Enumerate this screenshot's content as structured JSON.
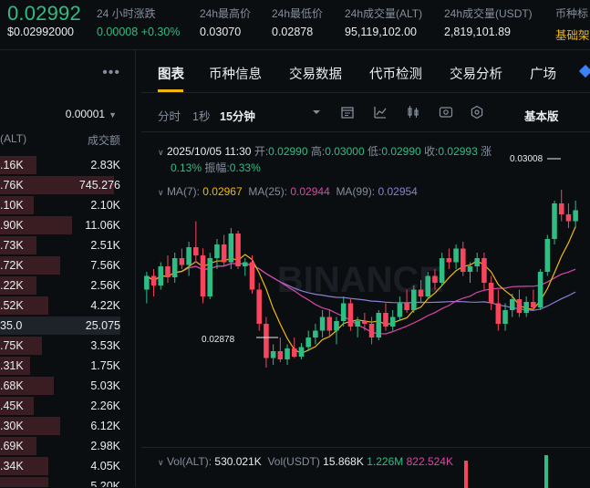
{
  "header": {
    "price": "0.02992",
    "price_fiat": "$0.02992000",
    "stats": [
      {
        "label": "24 小时涨跌",
        "value": "0.00008 +0.30%",
        "tone": "green"
      },
      {
        "label": "24h最高价",
        "value": "0.03070",
        "tone": "white"
      },
      {
        "label": "24h最低价",
        "value": "0.02878",
        "tone": "white"
      },
      {
        "label": "24h成交量(ALT)",
        "value": "95,119,102.00",
        "tone": "white"
      },
      {
        "label": "24h成交量(USDT)",
        "value": "2,819,101.89",
        "tone": "white"
      },
      {
        "label": "币种标",
        "value": "基础架",
        "tone": "yellow"
      }
    ]
  },
  "orderbook": {
    "more_icon": "ellipsis-icon",
    "precision": "0.00001",
    "col_left": "(ALT)",
    "col_right": "成交额",
    "rows": [
      {
        "left": ".16K",
        "right": "2.83K",
        "depth": 0.3
      },
      {
        "left": ".76K",
        "right": "745.276",
        "depth": 0.95
      },
      {
        "left": ".10K",
        "right": "2.10K",
        "depth": 0.28
      },
      {
        "left": ".90K",
        "right": "11.06K",
        "depth": 0.6
      },
      {
        "left": ".73K",
        "right": "2.51K",
        "depth": 0.3
      },
      {
        "left": ".72K",
        "right": "7.56K",
        "depth": 0.5
      },
      {
        "left": ".22K",
        "right": "2.56K",
        "depth": 0.3
      },
      {
        "left": ".52K",
        "right": "4.22K",
        "depth": 0.4
      },
      {
        "left": "35.0",
        "right": "25.075",
        "depth": 1.0,
        "mid": true
      },
      {
        "left": ".75K",
        "right": "3.53K",
        "depth": 0.35
      },
      {
        "left": ".31K",
        "right": "1.75K",
        "depth": 0.25
      },
      {
        "left": ".68K",
        "right": "5.03K",
        "depth": 0.45
      },
      {
        "left": ".45K",
        "right": "2.26K",
        "depth": 0.28
      },
      {
        "left": ".30K",
        "right": "6.12K",
        "depth": 0.5
      },
      {
        "left": ".69K",
        "right": "2.98K",
        "depth": 0.3
      },
      {
        "left": ".34K",
        "right": "4.05K",
        "depth": 0.4
      },
      {
        "left": "",
        "right": "5.20K",
        "depth": 0.4
      }
    ]
  },
  "tabs": [
    "图表",
    "币种信息",
    "交易数据",
    "代币检测",
    "交易分析",
    "广场"
  ],
  "toolbar": {
    "time_label": "分时",
    "one_sec": "1秒",
    "fifteen_min": "15分钟",
    "basic": "基本版",
    "icons": [
      "dropdown-caret-icon",
      "calendar-icon",
      "line-draw-icon",
      "candle-type-icon",
      "indicator-icon",
      "settings-icon"
    ]
  },
  "candle_info": {
    "datetime": "2025/10/05 11:30",
    "open_label": "开:",
    "open": "0.02990",
    "high_label": "高:",
    "high": "0.03000",
    "low_label": "低:",
    "low": "0.02990",
    "close_label": "收:",
    "close": "0.02993",
    "chg_label": "涨",
    "chg": "0.13%",
    "amp_label": "振幅:",
    "amp": "0.33%"
  },
  "ma": {
    "ma7_label": "MA(7):",
    "ma7": "0.02967",
    "ma25_label": "MA(25):",
    "ma25": "0.02944",
    "ma99_label": "MA(99):",
    "ma99": "0.02954",
    "colors": {
      "ma7": "#f0b90b",
      "ma25": "#d946a8",
      "ma99": "#8b7fd6"
    }
  },
  "price_marks": {
    "high": "0.03008",
    "low": "0.02878"
  },
  "watermark": "BINANCE",
  "chart_data": {
    "type": "candlestick",
    "y_range": [
      0.0285,
      0.0303
    ],
    "candles": [
      [
        0.02935,
        0.02948,
        0.02925,
        0.02945
      ],
      [
        0.02945,
        0.0295,
        0.0293,
        0.02938
      ],
      [
        0.02938,
        0.02955,
        0.02935,
        0.02952
      ],
      [
        0.02952,
        0.0296,
        0.0294,
        0.02944
      ],
      [
        0.02944,
        0.02962,
        0.0294,
        0.02958
      ],
      [
        0.02958,
        0.02965,
        0.0295,
        0.02953
      ],
      [
        0.02953,
        0.0297,
        0.02945,
        0.02966
      ],
      [
        0.02966,
        0.02985,
        0.02955,
        0.0296
      ],
      [
        0.0296,
        0.02965,
        0.02925,
        0.0293
      ],
      [
        0.0293,
        0.02962,
        0.02928,
        0.02958
      ],
      [
        0.02958,
        0.02972,
        0.0295,
        0.02968
      ],
      [
        0.02968,
        0.02975,
        0.02952,
        0.02955
      ],
      [
        0.02955,
        0.0298,
        0.0295,
        0.02976
      ],
      [
        0.02976,
        0.02978,
        0.0295,
        0.02952
      ],
      [
        0.02952,
        0.02958,
        0.02945,
        0.02955
      ],
      [
        0.02955,
        0.0296,
        0.02932,
        0.02935
      ],
      [
        0.02935,
        0.0294,
        0.02905,
        0.0291
      ],
      [
        0.0291,
        0.02915,
        0.02878,
        0.02885
      ],
      [
        0.02885,
        0.02895,
        0.0288,
        0.0289
      ],
      [
        0.0289,
        0.029,
        0.02882,
        0.02884
      ],
      [
        0.02884,
        0.02895,
        0.0288,
        0.02892
      ],
      [
        0.02892,
        0.029,
        0.02885,
        0.02886
      ],
      [
        0.02886,
        0.02896,
        0.02884,
        0.02893
      ],
      [
        0.02893,
        0.02905,
        0.0289,
        0.029
      ],
      [
        0.029,
        0.0291,
        0.02895,
        0.02905
      ],
      [
        0.02905,
        0.0292,
        0.029,
        0.02915
      ],
      [
        0.02915,
        0.0292,
        0.029,
        0.02905
      ],
      [
        0.02905,
        0.02915,
        0.02895,
        0.02912
      ],
      [
        0.02912,
        0.0293,
        0.02908,
        0.02925
      ],
      [
        0.02925,
        0.02928,
        0.02905,
        0.02908
      ],
      [
        0.02908,
        0.02915,
        0.029,
        0.02912
      ],
      [
        0.02912,
        0.02918,
        0.02905,
        0.0291
      ],
      [
        0.0291,
        0.02915,
        0.02895,
        0.029
      ],
      [
        0.029,
        0.0292,
        0.02898,
        0.02918
      ],
      [
        0.02918,
        0.02925,
        0.02905,
        0.02908
      ],
      [
        0.02908,
        0.0292,
        0.02905,
        0.02915
      ],
      [
        0.02915,
        0.0293,
        0.02912,
        0.02925
      ],
      [
        0.02925,
        0.02935,
        0.02918,
        0.0292
      ],
      [
        0.0292,
        0.02938,
        0.02918,
        0.02935
      ],
      [
        0.02935,
        0.02942,
        0.02925,
        0.0293
      ],
      [
        0.0293,
        0.02948,
        0.02928,
        0.02945
      ],
      [
        0.02945,
        0.0295,
        0.02935,
        0.0294
      ],
      [
        0.0294,
        0.02962,
        0.02938,
        0.02958
      ],
      [
        0.02958,
        0.02965,
        0.0295,
        0.02955
      ],
      [
        0.02955,
        0.02968,
        0.0295,
        0.02965
      ],
      [
        0.02965,
        0.0297,
        0.02945,
        0.02948
      ],
      [
        0.02948,
        0.02955,
        0.0294,
        0.02952
      ],
      [
        0.02952,
        0.02962,
        0.02948,
        0.02958
      ],
      [
        0.02958,
        0.02962,
        0.02935,
        0.0294
      ],
      [
        0.0294,
        0.02945,
        0.0292,
        0.02925
      ],
      [
        0.02925,
        0.02935,
        0.02905,
        0.0291
      ],
      [
        0.0291,
        0.02925,
        0.02905,
        0.0292
      ],
      [
        0.0292,
        0.02932,
        0.02915,
        0.02928
      ],
      [
        0.02928,
        0.02935,
        0.02915,
        0.02918
      ],
      [
        0.02918,
        0.0293,
        0.02915,
        0.02926
      ],
      [
        0.02926,
        0.02935,
        0.0292,
        0.02922
      ],
      [
        0.02922,
        0.0295,
        0.0292,
        0.02948
      ],
      [
        0.02948,
        0.02975,
        0.02945,
        0.02972
      ],
      [
        0.02972,
        0.03,
        0.02968,
        0.02998
      ],
      [
        0.02998,
        0.03008,
        0.02985,
        0.0299
      ],
      [
        0.0299,
        0.02998,
        0.0298,
        0.02985
      ],
      [
        0.02985,
        0.03,
        0.0298,
        0.02993
      ]
    ]
  },
  "volume": {
    "vol_alt_label": "Vol(ALT):",
    "vol_alt": "530.021K",
    "vol_usdt_label": "Vol(USDT)",
    "vol_usdt": "15.868K",
    "ma1": "1.226M",
    "ma2": "822.524K"
  }
}
